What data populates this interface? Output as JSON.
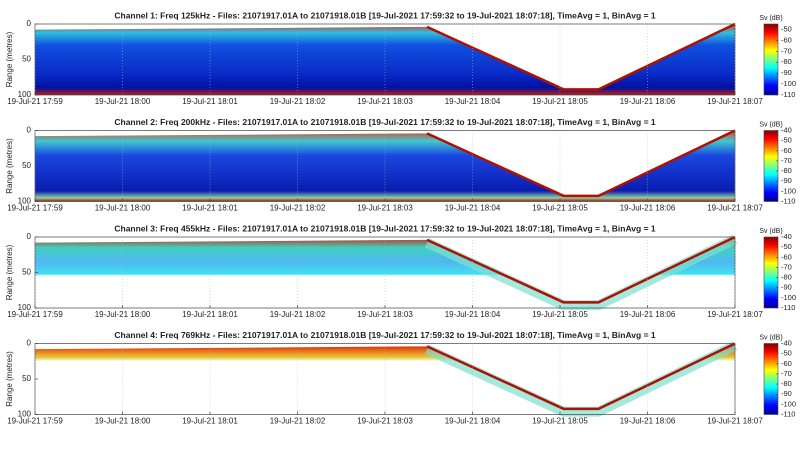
{
  "chart_data": [
    {
      "type": "heatmap",
      "title": "Channel 1: Freq 125kHz - Files: 21071917.01A to 21071918.01B  [19-Jul-2021 17:59:32 to 19-Jul-2021 18:07:18], TimeAvg = 1, BinAvg = 1",
      "ylabel": "Range (metres)",
      "ylim": [
        0,
        100
      ],
      "yticks": [
        0,
        50,
        100
      ],
      "yreverse": true,
      "xticks": [
        "19-Jul-21 17:59",
        "19-Jul-21 18:00",
        "19-Jul-21 18:01",
        "19-Jul-21 18:02",
        "19-Jul-21 18:03",
        "19-Jul-21 18:04",
        "19-Jul-21 18:05",
        "19-Jul-21 18:06",
        "19-Jul-21 18:07"
      ],
      "grid": true,
      "colorbar_label": "Sv (dB)",
      "clim": [
        -110,
        -45
      ],
      "cticks": [
        -50,
        -60,
        -70,
        -80,
        -90,
        -100,
        -110
      ]
    },
    {
      "type": "heatmap",
      "title": "Channel 2: Freq 200kHz - Files: 21071917.01A to 21071918.01B  [19-Jul-2021 17:59:32 to 19-Jul-2021 18:07:18], TimeAvg = 1, BinAvg = 1",
      "ylabel": "Range (metres)",
      "ylim": [
        0,
        100
      ],
      "yticks": [
        0,
        50,
        100
      ],
      "yreverse": true,
      "xticks": [
        "19-Jul-21 17:59",
        "19-Jul-21 18:00",
        "19-Jul-21 18:01",
        "19-Jul-21 18:02",
        "19-Jul-21 18:03",
        "19-Jul-21 18:04",
        "19-Jul-21 18:05",
        "19-Jul-21 18:06",
        "19-Jul-21 18:07"
      ],
      "grid": true,
      "colorbar_label": "Sv (dB)",
      "clim": [
        -110,
        -40
      ],
      "cticks": [
        -40,
        -50,
        -60,
        -70,
        -80,
        -90,
        -100,
        -110
      ]
    },
    {
      "type": "heatmap",
      "title": "Channel 3: Freq 455kHz - Files: 21071917.01A to 21071918.01B  [19-Jul-2021 17:59:32 to 19-Jul-2021 18:07:18], TimeAvg = 1, BinAvg = 1",
      "ylabel": "Range (metres)",
      "ylim": [
        0,
        100
      ],
      "yticks": [
        0,
        50,
        100
      ],
      "yreverse": true,
      "xticks": [
        "19-Jul-21 17:59",
        "19-Jul-21 18:00",
        "19-Jul-21 18:01",
        "19-Jul-21 18:02",
        "19-Jul-21 18:03",
        "19-Jul-21 18:04",
        "19-Jul-21 18:05",
        "19-Jul-21 18:06",
        "19-Jul-21 18:07"
      ],
      "grid": true,
      "colorbar_label": "Sv (dB)",
      "clim": [
        -110,
        -40
      ],
      "cticks": [
        -40,
        -50,
        -60,
        -70,
        -80,
        -90,
        -100,
        -110
      ]
    },
    {
      "type": "heatmap",
      "title": "Channel 4: Freq 769kHz - Files: 21071917.01A to 21071918.01B  [19-Jul-2021 17:59:32 to 19-Jul-2021 18:07:18], TimeAvg = 1, BinAvg = 1",
      "ylabel": "Range (metres)",
      "ylim": [
        0,
        100
      ],
      "yticks": [
        0,
        50,
        100
      ],
      "yreverse": true,
      "xticks": [
        "19-Jul-21 17:59",
        "19-Jul-21 18:00",
        "19-Jul-21 18:01",
        "19-Jul-21 18:02",
        "19-Jul-21 18:03",
        "19-Jul-21 18:04",
        "19-Jul-21 18:05",
        "19-Jul-21 18:06",
        "19-Jul-21 18:07"
      ],
      "grid": true,
      "colorbar_label": "Sv (dB)",
      "clim": [
        -110,
        -40
      ],
      "cticks": [
        -40,
        -50,
        -60,
        -70,
        -80,
        -90,
        -100,
        -110
      ]
    }
  ]
}
